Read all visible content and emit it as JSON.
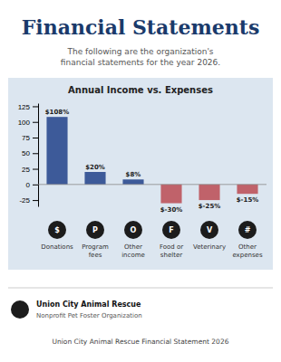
{
  "title": "Financial Statements",
  "subtitle": "The following are the organization's\nfinancial statements for the year 2026.",
  "org_name": "Union City Animal Rescue",
  "org_sub": "Nonprofit Pet Foster Organization",
  "footer_text": "Union City Animal Rescue Financial Statement 2026",
  "chart_data": {
    "type": "bar",
    "title": "Annual Income vs. Expenses",
    "categories": [
      "Donations",
      "Program\nfees",
      "Other\nincome",
      "Food or\nshelter",
      "Veterinary",
      "Other\nexpenses"
    ],
    "category_icons": [
      "$",
      "P",
      "O",
      "F",
      "V",
      "#"
    ],
    "values": [
      108,
      20,
      8,
      -30,
      -25,
      -15
    ],
    "value_labels": [
      "$108%",
      "$20%",
      "$8%",
      "$-30%",
      "$-25%",
      "$-15%"
    ],
    "colors": [
      "#3d5a99",
      "#3d5a99",
      "#3d5a99",
      "#c0626a",
      "#c0626a",
      "#c0626a"
    ],
    "ylim": [
      -35,
      130
    ],
    "yticks": [
      -25,
      0,
      25,
      50,
      75,
      100,
      125
    ],
    "grid": false,
    "data_labels": true
  }
}
